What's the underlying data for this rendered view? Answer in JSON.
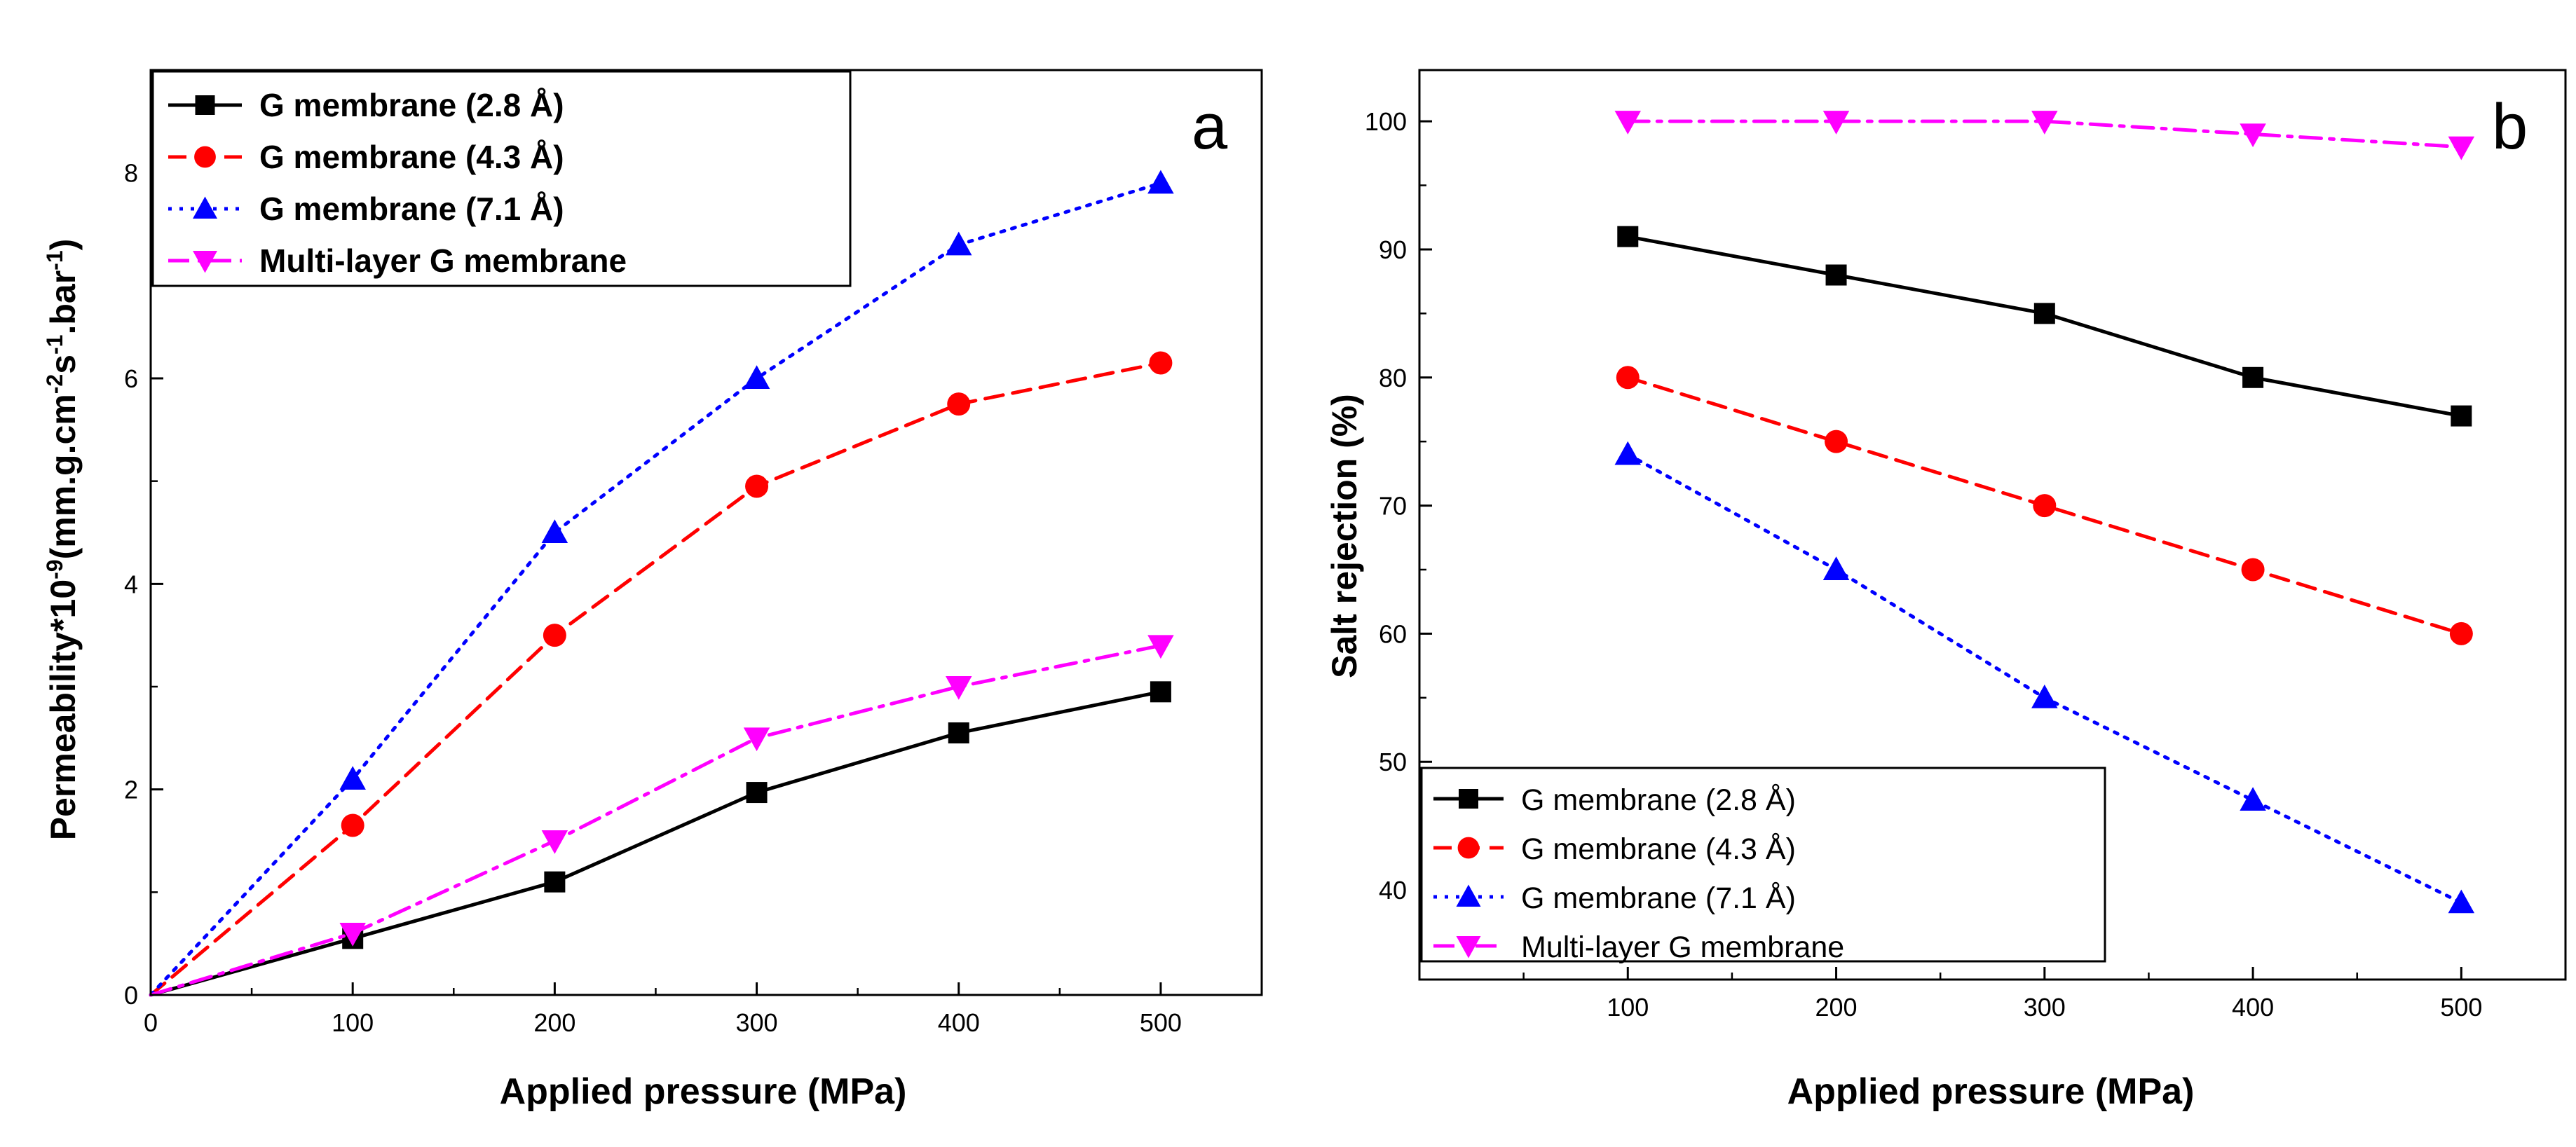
{
  "chart_data": [
    {
      "type": "line",
      "panel_label": "a",
      "title": "",
      "xlabel": "Applied pressure (MPa)",
      "ylabel": {
        "base": "Permeability*10",
        "base_sup": "-9",
        "unit1": "(mm.g.cm",
        "unit1_sup": "-2",
        "unit2": "s",
        "unit2_sup": "-1",
        "unit3": ".bar",
        "unit3_sup": "-1",
        "unit4": ")"
      },
      "xlim": [
        0,
        550
      ],
      "ylim": [
        0,
        9
      ],
      "xticks": [
        0,
        100,
        200,
        300,
        400,
        500
      ],
      "yticks": [
        0,
        2,
        4,
        6,
        8
      ],
      "legend_position": "top-left",
      "series": [
        {
          "name": "G membrane (2.8  Å)",
          "color": "#000000",
          "dash": "solid",
          "marker": "square",
          "x": [
            0,
            100,
            200,
            300,
            400,
            500
          ],
          "y": [
            0,
            0.55,
            1.1,
            1.97,
            2.55,
            2.95
          ]
        },
        {
          "name": "G membrane (4.3  Å)",
          "color": "#ff0000",
          "dash": "dashed",
          "marker": "circle",
          "x": [
            0,
            100,
            200,
            300,
            400,
            500
          ],
          "y": [
            0,
            1.65,
            3.5,
            4.95,
            5.75,
            6.15
          ]
        },
        {
          "name": "G membrane (7.1  Å)",
          "color": "#0000ff",
          "dash": "dotted",
          "marker": "triangle-up",
          "x": [
            0,
            100,
            200,
            300,
            400,
            500
          ],
          "y": [
            0,
            2.1,
            4.5,
            6.0,
            7.3,
            7.9
          ]
        },
        {
          "name": "Multi-layer G membrane",
          "color": "#ff00ff",
          "dash": "dashdot",
          "marker": "triangle-down",
          "x": [
            0,
            100,
            200,
            300,
            400,
            500
          ],
          "y": [
            0,
            0.6,
            1.5,
            2.5,
            3.0,
            3.4
          ]
        }
      ]
    },
    {
      "type": "line",
      "panel_label": "b",
      "title": "",
      "xlabel": "Applied pressure (MPa)",
      "ylabel": "Salt rejection (%)",
      "xlim": [
        0,
        550
      ],
      "ylim": [
        33,
        104
      ],
      "xticks": [
        100,
        200,
        300,
        400,
        500
      ],
      "yticks": [
        40,
        50,
        60,
        70,
        80,
        90,
        100
      ],
      "legend_position": "bottom-left",
      "series": [
        {
          "name": "G membrane (2.8  Å)",
          "color": "#000000",
          "dash": "solid",
          "marker": "square",
          "x": [
            100,
            200,
            300,
            400,
            500
          ],
          "y": [
            91,
            88,
            85,
            80,
            77
          ]
        },
        {
          "name": "G membrane (4.3  Å)",
          "color": "#ff0000",
          "dash": "dashed",
          "marker": "circle",
          "x": [
            100,
            200,
            300,
            400,
            500
          ],
          "y": [
            80,
            75,
            70,
            65,
            60
          ]
        },
        {
          "name": "G membrane (7.1  Å)",
          "color": "#0000ff",
          "dash": "dotted",
          "marker": "triangle-up",
          "x": [
            100,
            200,
            300,
            400,
            500
          ],
          "y": [
            74,
            65,
            55,
            47,
            39
          ]
        },
        {
          "name": "Multi-layer G membrane",
          "color": "#ff00ff",
          "dash": "dashdot",
          "marker": "triangle-down",
          "x": [
            100,
            200,
            300,
            400,
            500
          ],
          "y": [
            100,
            100,
            100,
            99,
            98
          ]
        }
      ]
    }
  ]
}
